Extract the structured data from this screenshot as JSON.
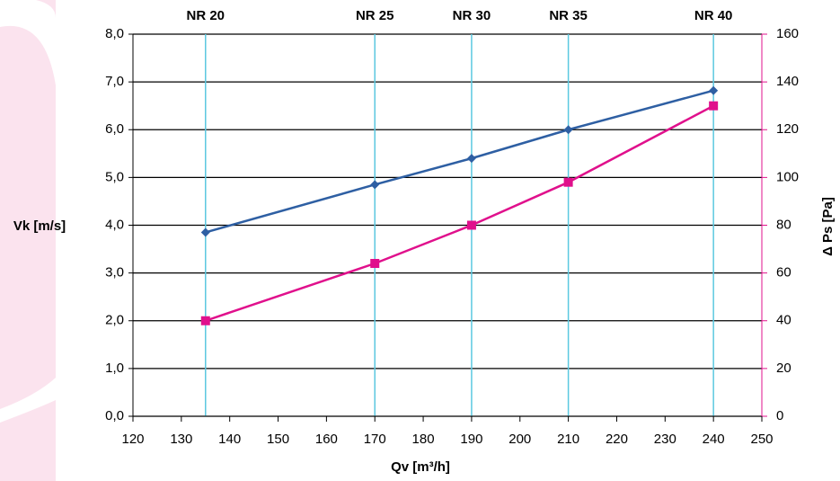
{
  "chart_data": {
    "type": "line",
    "x_label": "Qv [m³/h]",
    "y_label": "Vk [m/s]",
    "y2_label": "Δ Ps [Pa]",
    "x": [
      135,
      170,
      190,
      210,
      240
    ],
    "series": [
      {
        "color": "#2e5fa3",
        "marker": "diamond",
        "values": [
          3.85,
          4.85,
          5.4,
          6.0,
          6.82
        ]
      },
      {
        "color": "#e0108c",
        "marker": "square",
        "axis": "y2",
        "values": [
          40,
          64,
          80,
          98,
          130
        ]
      }
    ],
    "reference_lines": [
      {
        "x": 135,
        "label": "NR 20"
      },
      {
        "x": 170,
        "label": "NR 25"
      },
      {
        "x": 190,
        "label": "NR 30"
      },
      {
        "x": 210,
        "label": "NR 35"
      },
      {
        "x": 240,
        "label": "NR 40"
      }
    ],
    "reference_color": "#5bc8e0",
    "xlim": [
      120,
      250
    ],
    "xticks": [
      120,
      130,
      140,
      150,
      160,
      170,
      180,
      190,
      200,
      210,
      220,
      230,
      240,
      250
    ],
    "ylim": [
      0,
      8
    ],
    "yticks": [
      {
        "value": 0,
        "label": "0,0"
      },
      {
        "value": 1,
        "label": "1,0"
      },
      {
        "value": 2,
        "label": "2,0"
      },
      {
        "value": 3,
        "label": "3,0"
      },
      {
        "value": 4,
        "label": "4,0"
      },
      {
        "value": 5,
        "label": "5,0"
      },
      {
        "value": 6,
        "label": "6,0"
      },
      {
        "value": 7,
        "label": "7,0"
      },
      {
        "value": 8,
        "label": "8,0"
      }
    ],
    "y2lim": [
      0,
      160
    ],
    "y2ticks": [
      0,
      20,
      40,
      60,
      80,
      100,
      120,
      140,
      160
    ],
    "y2_color": "#e0108c",
    "grid": true
  }
}
